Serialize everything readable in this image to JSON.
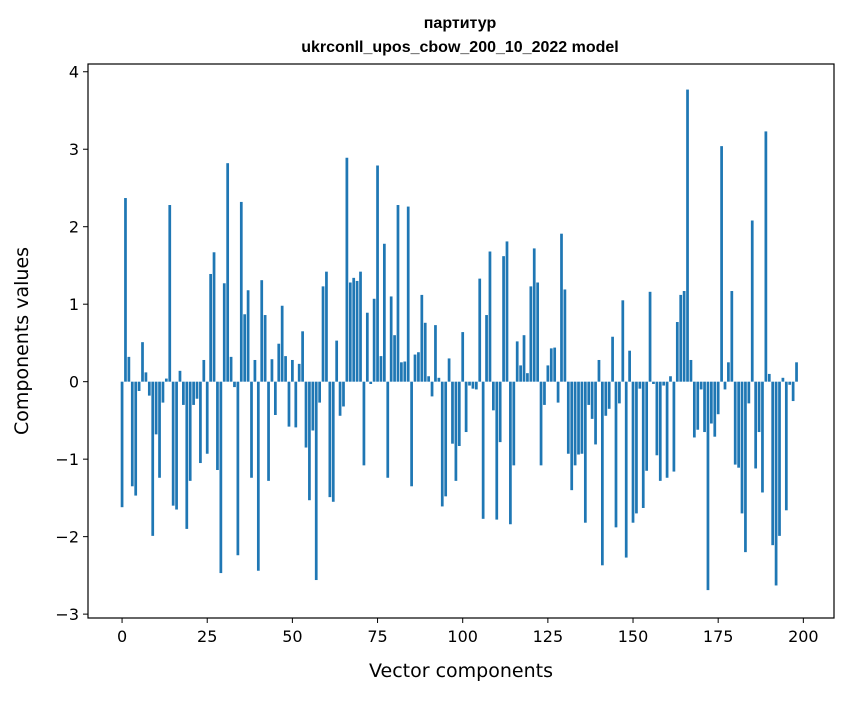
{
  "chart_data": {
    "type": "bar",
    "title": "партитур\nukrconll_upos_cbow_200_10_2022 model",
    "xlabel": "Vector components",
    "ylabel": "Components values",
    "xlim": [
      -10,
      209
    ],
    "ylim": [
      -3.05,
      4.1
    ],
    "xticks": [
      0,
      25,
      50,
      75,
      100,
      125,
      150,
      175,
      200
    ],
    "yticks": [
      -3,
      -2,
      -1,
      0,
      1,
      2,
      3,
      4
    ],
    "ytick_labels": [
      "−3",
      "−2",
      "−1",
      "0",
      "1",
      "2",
      "3",
      "4"
    ],
    "grid": false,
    "bar_color": "#1f77b4",
    "series": [
      {
        "values": [
          -1.62,
          2.37,
          0.32,
          -1.35,
          -1.47,
          -0.12,
          0.51,
          0.12,
          -0.18,
          -1.99,
          -0.68,
          -1.24,
          -0.27,
          0.04,
          2.28,
          -1.6,
          -1.65,
          0.14,
          -0.3,
          -1.9,
          -1.28,
          -0.3,
          -0.22,
          -1.05,
          0.28,
          -0.93,
          1.39,
          1.67,
          -1.14,
          -2.47,
          1.27,
          2.82,
          0.32,
          -0.07,
          -2.24,
          2.32,
          0.87,
          1.18,
          -1.24,
          0.28,
          -2.44,
          1.31,
          0.86,
          -1.28,
          0.29,
          -0.43,
          0.49,
          0.98,
          0.33,
          -0.58,
          0.28,
          -0.59,
          0.23,
          0.65,
          -0.85,
          -1.53,
          -0.63,
          -2.56,
          -0.27,
          1.23,
          1.42,
          -1.49,
          -1.55,
          0.53,
          -0.44,
          -0.32,
          2.89,
          1.28,
          1.34,
          1.3,
          1.42,
          -1.08,
          0.89,
          -0.03,
          1.07,
          2.79,
          0.33,
          1.78,
          -1.24,
          1.1,
          0.6,
          2.28,
          0.25,
          0.26,
          2.26,
          -1.35,
          0.35,
          0.38,
          1.12,
          0.76,
          0.07,
          -0.19,
          0.73,
          0.05,
          -1.61,
          -1.48,
          0.3,
          -0.8,
          -1.28,
          -0.83,
          0.64,
          -0.65,
          -0.05,
          -0.09,
          -0.1,
          1.33,
          -1.77,
          0.86,
          1.68,
          -0.37,
          -1.78,
          -0.78,
          1.62,
          1.81,
          -1.84,
          -1.08,
          0.52,
          0.21,
          0.6,
          0.11,
          1.23,
          1.72,
          1.28,
          -1.08,
          -0.3,
          0.21,
          0.43,
          0.44,
          -0.27,
          1.91,
          1.19,
          -0.93,
          -1.4,
          -1.08,
          -0.94,
          -0.93,
          -1.82,
          -0.3,
          -0.48,
          -0.81,
          0.28,
          -2.37,
          -0.44,
          -0.35,
          0.58,
          -1.88,
          -0.28,
          1.05,
          -2.27,
          0.4,
          -1.82,
          -1.7,
          -0.09,
          -1.63,
          -1.15,
          1.16,
          -0.03,
          -0.95,
          -1.28,
          -0.05,
          -1.24,
          0.07,
          -1.16,
          0.77,
          1.12,
          1.17,
          3.77,
          0.28,
          -0.72,
          -0.62,
          -0.1,
          -0.65,
          -2.69,
          -0.54,
          -0.71,
          -0.42,
          3.04,
          -0.1,
          0.25,
          1.17,
          -1.07,
          -1.11,
          -1.7,
          -2.2,
          -0.28,
          2.08,
          -1.12,
          -0.65,
          -1.43,
          3.23,
          0.1,
          -2.11,
          -2.63,
          -1.99,
          0.05,
          -1.66,
          -0.04,
          -0.25,
          0.25
        ]
      }
    ]
  }
}
